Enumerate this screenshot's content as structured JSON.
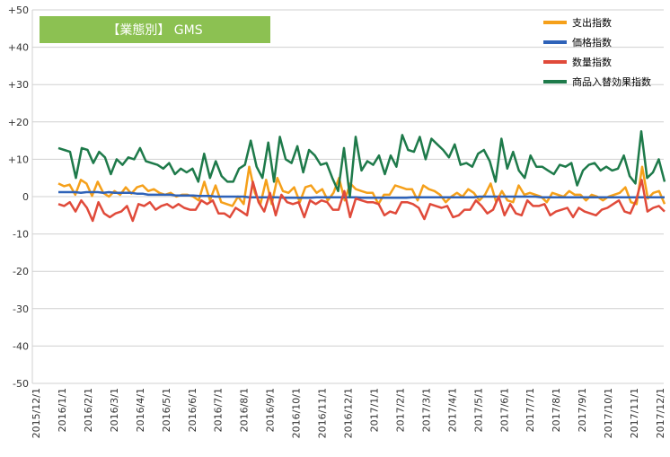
{
  "chart_data": {
    "type": "line",
    "title": "【業態別】 GMS",
    "ylim": [
      -50,
      50
    ],
    "yticks": [
      50,
      40,
      30,
      20,
      10,
      0,
      -10,
      -20,
      -30,
      -40,
      -50
    ],
    "ytick_labels": [
      "+50",
      "+40",
      "+30",
      "+20",
      "+10",
      "0",
      "-10",
      "-20",
      "-30",
      "-40",
      "-50"
    ],
    "xtick_labels": [
      "2015/12/1",
      "2016/1/1",
      "2016/2/1",
      "2016/3/1",
      "2016/4/1",
      "2016/5/1",
      "2016/6/1",
      "2016/7/1",
      "2016/8/1",
      "2016/9/1",
      "2016/10/1",
      "2016/11/1",
      "2016/12/1",
      "2017/1/1",
      "2017/2/1",
      "2017/3/1",
      "2017/4/1",
      "2017/5/1",
      "2017/6/1",
      "2017/7/1",
      "2017/8/1",
      "2017/9/1",
      "2017/10/1",
      "2017/11/1",
      "2017/12/1"
    ],
    "grid": true,
    "legend_position": "top-right",
    "series": [
      {
        "name": "支出指数",
        "color": "#f5a01a",
        "values": [
          3.5,
          2.8,
          3.2,
          0.5,
          4.5,
          3.5,
          0.2,
          4,
          1,
          0,
          1.5,
          0.5,
          2.5,
          0.8,
          2.5,
          3,
          1.5,
          2,
          1,
          0.5,
          1,
          0,
          0.5,
          0.5,
          0,
          -1,
          4,
          -1,
          3,
          -1.5,
          -2,
          -2.5,
          0,
          -2,
          8,
          1,
          -2,
          4.5,
          -2,
          5,
          1.5,
          1,
          2.5,
          -1.5,
          2.5,
          3,
          1,
          2,
          -1,
          1,
          5,
          -1,
          3.5,
          2,
          1.5,
          1,
          1,
          -2,
          0.5,
          0.5,
          3,
          2.5,
          2,
          2,
          -1,
          3,
          2,
          1.5,
          0.5,
          -1.5,
          0,
          1,
          0,
          2,
          1,
          -1,
          0.5,
          3.5,
          -1.5,
          1.5,
          -1,
          -1.5,
          3,
          0.5,
          1,
          0.5,
          0,
          -1.5,
          1,
          0.5,
          0,
          1.5,
          0.5,
          0.5,
          -1,
          0.5,
          0,
          -1,
          0,
          0.5,
          1,
          2.5,
          -1.5,
          -2,
          8,
          -0.5,
          1,
          1.5,
          -2
        ]
      },
      {
        "name": "価格指数",
        "color": "#2e62b8",
        "values": [
          1.2,
          1.2,
          1.2,
          1.2,
          1,
          1.2,
          1.2,
          1.2,
          1,
          1.2,
          1,
          1,
          1,
          1,
          0.8,
          0.8,
          0.5,
          0.5,
          0.5,
          0.5,
          0.5,
          0.3,
          0.3,
          0.3,
          0.3,
          0.2,
          0.2,
          0.2,
          0,
          0,
          0,
          0,
          0,
          0,
          -0.2,
          -0.2,
          -0.2,
          -0.2,
          -0.2,
          -0.2,
          -0.3,
          -0.3,
          -0.3,
          -0.3,
          -0.3,
          -0.3,
          -0.2,
          -0.2,
          -0.2,
          -0.2,
          -0.2,
          -0.2,
          -0.2,
          -0.2,
          -0.3,
          -0.3,
          -0.3,
          -0.3,
          -0.3,
          -0.3,
          -0.3,
          -0.3,
          -0.3,
          -0.2,
          -0.2,
          -0.2,
          -0.2,
          -0.2,
          -0.2,
          -0.2,
          -0.2,
          -0.2,
          -0.2,
          -0.2,
          -0.2,
          0,
          0,
          0,
          0,
          0,
          0,
          0,
          0,
          0,
          0,
          0,
          -0.2,
          -0.2,
          -0.2,
          -0.2,
          -0.2,
          -0.2,
          -0.2,
          -0.2,
          -0.2,
          -0.2,
          -0.2,
          -0.2,
          -0.2,
          -0.2,
          -0.2,
          -0.2,
          -0.2,
          -0.2,
          -0.2,
          -0.2,
          -0.2,
          -0.2,
          -0.2
        ]
      },
      {
        "name": "数量指数",
        "color": "#e04a3a",
        "values": [
          -2,
          -2.5,
          -1.5,
          -4,
          -1,
          -3,
          -6.5,
          -1.5,
          -4.5,
          -5.5,
          -4.5,
          -4,
          -2.5,
          -6.5,
          -2,
          -2.5,
          -1.5,
          -3.5,
          -2.5,
          -2,
          -3,
          -2,
          -3,
          -3.5,
          -3.5,
          -1,
          -2,
          -1,
          -4.5,
          -4.5,
          -5.5,
          -3,
          -4,
          -5,
          4,
          -1.5,
          -4,
          1,
          -5,
          0.5,
          -1.5,
          -2,
          -1.5,
          -5.5,
          -1,
          -2,
          -1,
          -1.5,
          -3.5,
          -3.5,
          1.5,
          -5.5,
          -0.5,
          -1,
          -1.5,
          -1.5,
          -2,
          -5,
          -4,
          -4.5,
          -1.5,
          -1.5,
          -2,
          -3,
          -6,
          -2,
          -2.5,
          -3,
          -2.5,
          -5.5,
          -5,
          -3.5,
          -3.5,
          -1,
          -2.5,
          -4.5,
          -3.5,
          0,
          -5,
          -2,
          -4.5,
          -5,
          -1,
          -2.5,
          -2.5,
          -2,
          -5,
          -4,
          -3.5,
          -3,
          -5.5,
          -3,
          -4,
          -4.5,
          -5,
          -3.5,
          -3,
          -2,
          -1,
          -4,
          -4.5,
          -1,
          4.5,
          -4,
          -3,
          -2.5,
          -4
        ]
      },
      {
        "name": "商品入替効果指数",
        "color": "#1e7a4a",
        "values": [
          13,
          12.5,
          12,
          5,
          13,
          12.5,
          9,
          12,
          10.5,
          6,
          10,
          8.5,
          10.5,
          10,
          13,
          9.5,
          9,
          8.5,
          7.5,
          9,
          6,
          7.5,
          6.5,
          7.5,
          4,
          11.5,
          5,
          9.5,
          5.5,
          4,
          4,
          7.5,
          8.5,
          15,
          8,
          5,
          14.5,
          4,
          16,
          10,
          9,
          13.5,
          6.5,
          12.5,
          11,
          8.5,
          9,
          5,
          1.5,
          13,
          0,
          16,
          7,
          9.5,
          8.5,
          11,
          6,
          11,
          8,
          16.5,
          12.5,
          12,
          16,
          10,
          15.5,
          14,
          12.5,
          10.5,
          14,
          8.5,
          9,
          8,
          11.5,
          12.5,
          9.5,
          4,
          15.5,
          7.5,
          12,
          7,
          5,
          11,
          8,
          8,
          7,
          6,
          8.5,
          8,
          9,
          3,
          7,
          8.5,
          9,
          7,
          8,
          7,
          7.5,
          11,
          5.5,
          3.5,
          17.5,
          5,
          6.5,
          10,
          4
        ]
      }
    ]
  }
}
